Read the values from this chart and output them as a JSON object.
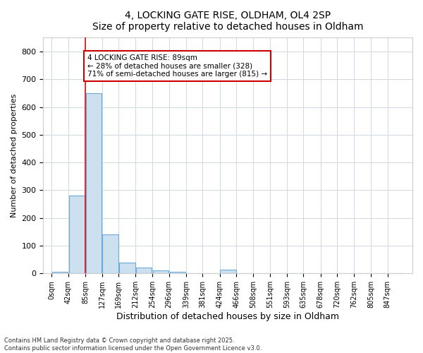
{
  "title": "4, LOCKING GATE RISE, OLDHAM, OL4 2SP",
  "subtitle": "Size of property relative to detached houses in Oldham",
  "xlabel": "Distribution of detached houses by size in Oldham",
  "ylabel": "Number of detached properties",
  "categories": [
    "0sqm",
    "42sqm",
    "85sqm",
    "127sqm",
    "169sqm",
    "212sqm",
    "254sqm",
    "296sqm",
    "339sqm",
    "381sqm",
    "424sqm",
    "466sqm",
    "508sqm",
    "551sqm",
    "593sqm",
    "635sqm",
    "678sqm",
    "720sqm",
    "762sqm",
    "805sqm",
    "847sqm"
  ],
  "bin_edges": [
    0,
    42,
    85,
    127,
    169,
    212,
    254,
    296,
    339,
    381,
    424,
    466,
    508,
    551,
    593,
    635,
    678,
    720,
    762,
    805,
    847,
    889
  ],
  "values": [
    5,
    280,
    650,
    140,
    38,
    20,
    10,
    5,
    0,
    0,
    13,
    0,
    0,
    0,
    0,
    0,
    2,
    0,
    0,
    0,
    0
  ],
  "bar_color": "#cce0f0",
  "bar_edge_color": "#6aaad4",
  "grid_color": "#d0d8e0",
  "background_color": "#ffffff",
  "red_line_x": 85,
  "annotation_text": "4 LOCKING GATE RISE: 89sqm\n← 28% of detached houses are smaller (328)\n71% of semi-detached houses are larger (815) →",
  "annotation_box_color": "#ffffff",
  "annotation_box_edge": "#cc0000",
  "footnote": "Contains HM Land Registry data © Crown copyright and database right 2025.\nContains public sector information licensed under the Open Government Licence v3.0.",
  "ylim": [
    0,
    850
  ],
  "yticks": [
    0,
    100,
    200,
    300,
    400,
    500,
    600,
    700,
    800
  ]
}
